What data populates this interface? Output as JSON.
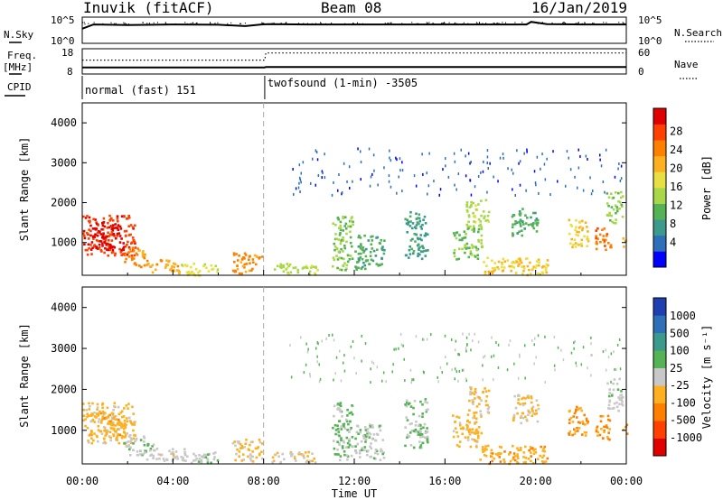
{
  "header": {
    "station": "Inuvik (fitACF)",
    "beam": "Beam 08",
    "date": "16/Jan/2019"
  },
  "chart_data": [
    {
      "type": "line",
      "panel": "noise",
      "left_label": "N.Sky",
      "right_label": "N.Search",
      "left_ticks": [
        "10^5",
        "10^0"
      ],
      "right_ticks": [
        "10^5",
        "10^0"
      ],
      "series": [
        {
          "name": "N.Sky",
          "x": [
            0.0,
            0.5,
            2,
            4,
            6,
            7.2,
            7.9,
            8.2,
            10,
            12,
            16,
            19.6,
            19.8,
            20.5,
            22,
            24
          ],
          "y": [
            2.8,
            3.6,
            3.5,
            3.6,
            3.55,
            3.3,
            3.6,
            3.65,
            3.6,
            3.6,
            3.6,
            3.6,
            4.1,
            3.65,
            3.6,
            3.6
          ]
        }
      ]
    },
    {
      "type": "line",
      "panel": "frequency",
      "left_label": "Freq.",
      "left_unit": "[MHz]",
      "right_label": "Nave",
      "left_ticks": [
        "18",
        "8"
      ],
      "right_ticks": [
        "60",
        "0"
      ],
      "series": [
        {
          "name": "Freq.",
          "x": [
            0,
            8.05,
            8.1,
            24
          ],
          "y": [
            10.6,
            10.6,
            10.8,
            10.8
          ]
        },
        {
          "name": "Nave",
          "x": [
            0,
            8.05,
            8.1,
            24
          ],
          "y": [
            33,
            33,
            50,
            50
          ]
        }
      ]
    },
    {
      "type": "table",
      "panel": "cpid",
      "label": "CPID",
      "segments": [
        {
          "start": 0,
          "end": 8.05,
          "text": "normal (fast) 151"
        },
        {
          "start": 8.05,
          "end": 24,
          "text": "twofsound (1-min) -3505"
        }
      ]
    },
    {
      "type": "heatmap",
      "panel": "power",
      "xlabel": "",
      "ylabel": "Slant Range [km]",
      "xlim": [
        0,
        24
      ],
      "ylim": [
        180,
        4500
      ],
      "yticks": [
        1000,
        2000,
        3000,
        4000
      ],
      "colorbar": {
        "label": "Power [dB]",
        "ticks": [
          "28",
          "24",
          "20",
          "16",
          "12",
          "8",
          "4"
        ],
        "range": [
          0,
          30
        ]
      },
      "colors": [
        "#0000ff",
        "#2d6fb8",
        "#3b9a8c",
        "#55b255",
        "#a8d84a",
        "#e8e043",
        "#ffb020",
        "#ff8000",
        "#ff4000",
        "#e00000"
      ],
      "patches": [
        {
          "x": [
            0.0,
            2.3
          ],
          "y": [
            700,
            1700
          ],
          "v": 26
        },
        {
          "x": [
            0.3,
            1.8
          ],
          "y": [
            800,
            1500
          ],
          "v": 29
        },
        {
          "x": [
            1.8,
            3.0
          ],
          "y": [
            400,
            900
          ],
          "v": 22
        },
        {
          "x": [
            2.8,
            4.3
          ],
          "y": [
            250,
            600
          ],
          "v": 20
        },
        {
          "x": [
            4.3,
            6.0
          ],
          "y": [
            200,
            500
          ],
          "v": 16
        },
        {
          "x": [
            6.6,
            7.9
          ],
          "y": [
            250,
            800
          ],
          "v": 22
        },
        {
          "x": [
            8.3,
            10.4
          ],
          "y": [
            220,
            500
          ],
          "v": 14
        },
        {
          "x": [
            11.0,
            11.9
          ],
          "y": [
            300,
            1700
          ],
          "v": 12
        },
        {
          "x": [
            12.0,
            13.3
          ],
          "y": [
            300,
            1200
          ],
          "v": 10
        },
        {
          "x": [
            14.2,
            15.2
          ],
          "y": [
            600,
            1800
          ],
          "v": 8
        },
        {
          "x": [
            16.3,
            17.6
          ],
          "y": [
            600,
            1400
          ],
          "v": 12
        },
        {
          "x": [
            16.9,
            17.9
          ],
          "y": [
            1400,
            2100
          ],
          "v": 14
        },
        {
          "x": [
            17.5,
            20.5
          ],
          "y": [
            200,
            650
          ],
          "v": 18
        },
        {
          "x": [
            18.9,
            20.1
          ],
          "y": [
            1200,
            1900
          ],
          "v": 10
        },
        {
          "x": [
            21.4,
            22.3
          ],
          "y": [
            900,
            1600
          ],
          "v": 18
        },
        {
          "x": [
            22.6,
            23.3
          ],
          "y": [
            800,
            1400
          ],
          "v": 24
        },
        {
          "x": [
            23.1,
            23.8
          ],
          "y": [
            1500,
            2300
          ],
          "v": 12
        },
        {
          "x": [
            23.8,
            24.0
          ],
          "y": [
            900,
            1200
          ],
          "v": 20
        },
        {
          "x": [
            9.0,
            23.8
          ],
          "y": [
            2200,
            3400
          ],
          "v": 4
        }
      ]
    },
    {
      "type": "heatmap",
      "panel": "velocity",
      "xlabel": "Time UT",
      "ylabel": "Slant Range [km]",
      "xlim": [
        0,
        24
      ],
      "ylim": [
        180,
        4500
      ],
      "xticks": [
        "00:00",
        "04:00",
        "08:00",
        "12:00",
        "16:00",
        "20:00",
        "00:00"
      ],
      "yticks": [
        1000,
        2000,
        3000,
        4000
      ],
      "colorbar": {
        "label": "Velocity [m s⁻¹]",
        "ticks": [
          "1000",
          "500",
          "100",
          "25",
          "-25",
          "-100",
          "-500",
          "-1000"
        ],
        "range": [
          -1200,
          1200
        ]
      },
      "colors": [
        "#e00000",
        "#ff4000",
        "#ff8000",
        "#ffb020",
        "#c8c8c8",
        "#55b255",
        "#3b9a8c",
        "#2d6fb8",
        "#1e3fb0"
      ],
      "patches": [
        {
          "x": [
            0.0,
            2.3
          ],
          "y": [
            700,
            1700
          ],
          "v": -200
        },
        {
          "x": [
            0.3,
            1.8
          ],
          "y": [
            800,
            1500
          ],
          "v": -300
        },
        {
          "x": [
            1.8,
            3.2
          ],
          "y": [
            400,
            900
          ],
          "v": 50
        },
        {
          "x": [
            2.8,
            4.5
          ],
          "y": [
            250,
            600
          ],
          "v": -30
        },
        {
          "x": [
            4.3,
            6.0
          ],
          "y": [
            200,
            500
          ],
          "v": 80
        },
        {
          "x": [
            6.6,
            7.9
          ],
          "y": [
            250,
            800
          ],
          "v": -150
        },
        {
          "x": [
            8.3,
            10.4
          ],
          "y": [
            220,
            500
          ],
          "v": -120
        },
        {
          "x": [
            11.0,
            11.9
          ],
          "y": [
            300,
            1700
          ],
          "v": 150
        },
        {
          "x": [
            12.0,
            13.3
          ],
          "y": [
            300,
            1200
          ],
          "v": 40
        },
        {
          "x": [
            14.2,
            15.2
          ],
          "y": [
            600,
            1800
          ],
          "v": 120
        },
        {
          "x": [
            16.3,
            17.6
          ],
          "y": [
            600,
            1400
          ],
          "v": -250
        },
        {
          "x": [
            16.9,
            17.9
          ],
          "y": [
            1400,
            2100
          ],
          "v": -200
        },
        {
          "x": [
            17.5,
            20.5
          ],
          "y": [
            200,
            650
          ],
          "v": -300
        },
        {
          "x": [
            18.9,
            20.1
          ],
          "y": [
            1200,
            1900
          ],
          "v": -150
        },
        {
          "x": [
            21.4,
            22.3
          ],
          "y": [
            900,
            1600
          ],
          "v": -400
        },
        {
          "x": [
            22.6,
            23.3
          ],
          "y": [
            800,
            1400
          ],
          "v": -450
        },
        {
          "x": [
            23.1,
            23.8
          ],
          "y": [
            1500,
            2300
          ],
          "v": 20
        },
        {
          "x": [
            23.8,
            24.0
          ],
          "y": [
            900,
            1200
          ],
          "v": -400
        },
        {
          "x": [
            9.0,
            23.8
          ],
          "y": [
            2200,
            3400
          ],
          "v": 150
        }
      ]
    }
  ]
}
